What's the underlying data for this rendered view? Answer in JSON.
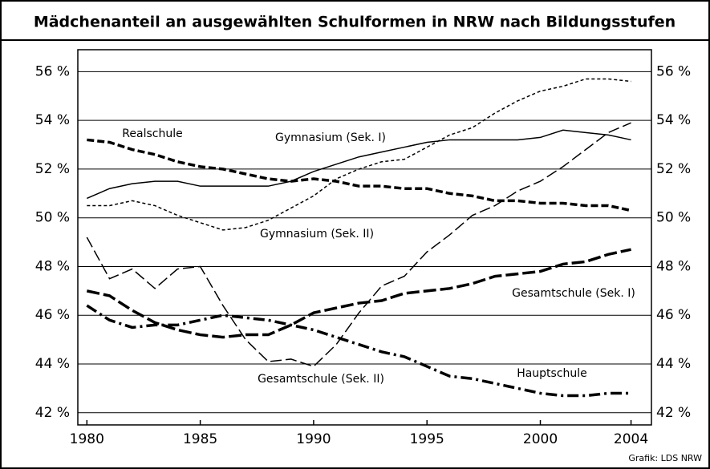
{
  "chart_data": {
    "type": "line",
    "title": "Mädchenanteil an ausgewählten Schulformen in NRW nach Bildungsstufen",
    "source": "Grafik: LDS NRW",
    "x": [
      1980,
      1981,
      1982,
      1983,
      1984,
      1985,
      1986,
      1987,
      1988,
      1989,
      1990,
      1991,
      1992,
      1993,
      1994,
      1995,
      1996,
      1997,
      1998,
      1999,
      2000,
      2001,
      2002,
      2003,
      2004
    ],
    "xlim": [
      1979.6,
      2004.9
    ],
    "xticks": [
      1980,
      1985,
      1990,
      1995,
      2000,
      2004
    ],
    "ylim": [
      41.5,
      56.9
    ],
    "yticks": [
      {
        "value": 42,
        "label": "42 %"
      },
      {
        "value": 44,
        "label": "44 %"
      },
      {
        "value": 46,
        "label": "46 %"
      },
      {
        "value": 48,
        "label": "48 %"
      },
      {
        "value": 50,
        "label": "50 %"
      },
      {
        "value": 52,
        "label": "52 %"
      },
      {
        "value": 54,
        "label": "54 %"
      },
      {
        "value": 56,
        "label": "56 %"
      }
    ],
    "grid": true,
    "series": [
      {
        "name": "Gymnasium (Sek. I)",
        "color": "#000000",
        "style": "solid",
        "values": [
          50.8,
          51.2,
          51.4,
          51.5,
          51.5,
          51.3,
          51.3,
          51.3,
          51.3,
          51.5,
          51.9,
          52.2,
          52.5,
          52.7,
          52.9,
          53.1,
          53.2,
          53.2,
          53.2,
          53.2,
          53.3,
          53.6,
          53.5,
          53.4,
          53.2
        ]
      },
      {
        "name": "Gymnasium (Sek. II)",
        "color": "#000000",
        "style": "short-dash",
        "values": [
          50.5,
          50.5,
          50.7,
          50.5,
          50.1,
          49.8,
          49.5,
          49.6,
          49.9,
          50.4,
          50.9,
          51.6,
          52.0,
          52.3,
          52.4,
          52.9,
          53.4,
          53.7,
          54.3,
          54.8,
          55.2,
          55.4,
          55.7,
          55.7,
          55.6
        ]
      },
      {
        "name": "Realschule",
        "color": "#000000",
        "style": "thick-dash",
        "values": [
          53.2,
          53.1,
          52.8,
          52.6,
          52.3,
          52.1,
          52.0,
          51.8,
          51.6,
          51.5,
          51.6,
          51.5,
          51.3,
          51.3,
          51.2,
          51.2,
          51.0,
          50.9,
          50.7,
          50.7,
          50.6,
          50.6,
          50.5,
          50.5,
          50.3
        ]
      },
      {
        "name": "Gesamtschule (Sek. I)",
        "color": "#000000",
        "style": "thick-long-dash",
        "values": [
          47.0,
          46.8,
          46.2,
          45.7,
          45.4,
          45.2,
          45.1,
          45.2,
          45.2,
          45.6,
          46.1,
          46.3,
          46.5,
          46.6,
          46.9,
          47.0,
          47.1,
          47.3,
          47.6,
          47.7,
          47.8,
          48.1,
          48.2,
          48.5,
          48.7
        ]
      },
      {
        "name": "Gesamtschule (Sek. II)",
        "color": "#000000",
        "style": "long-dash",
        "values": [
          49.2,
          47.5,
          47.9,
          47.1,
          47.9,
          48.0,
          46.4,
          45.0,
          44.1,
          44.2,
          43.9,
          44.8,
          46.1,
          47.2,
          47.6,
          48.6,
          49.3,
          50.1,
          50.5,
          51.1,
          51.5,
          52.1,
          52.8,
          53.5,
          53.9
        ]
      },
      {
        "name": "Hauptschule",
        "color": "#000000",
        "style": "dash-dot",
        "values": [
          46.4,
          45.8,
          45.5,
          45.6,
          45.6,
          45.8,
          46.0,
          45.9,
          45.8,
          45.6,
          45.4,
          45.1,
          44.8,
          44.5,
          44.3,
          43.9,
          43.5,
          43.4,
          43.2,
          43.0,
          42.8,
          42.7,
          42.7,
          42.8,
          42.8
        ]
      }
    ]
  }
}
